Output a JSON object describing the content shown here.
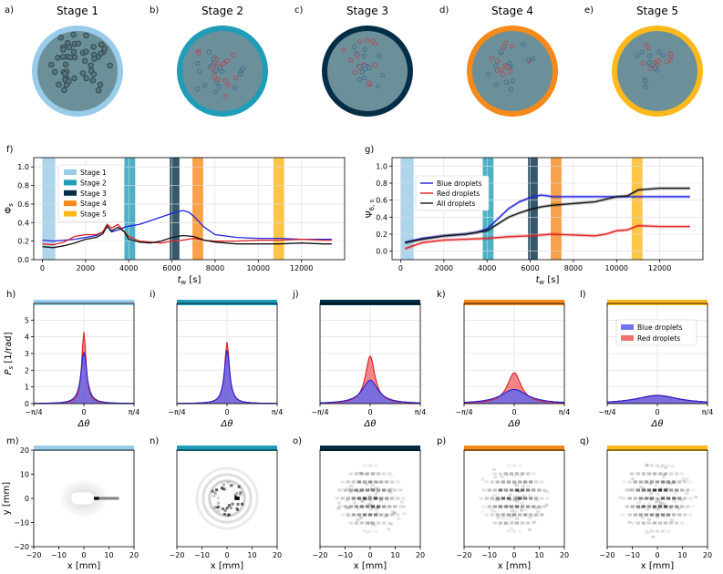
{
  "stages": [
    {
      "panel": "a)",
      "label": "Stage 1",
      "color": "#99CCE8",
      "n": 50
    },
    {
      "panel": "b)",
      "label": "Stage 2",
      "color": "#1F9DB8",
      "n": 38
    },
    {
      "panel": "c)",
      "label": "Stage 3",
      "color": "#032E46",
      "n": 30
    },
    {
      "panel": "d)",
      "label": "Stage 4",
      "color": "#F5891A",
      "n": 28
    },
    {
      "panel": "e)",
      "label": "Stage 5",
      "color": "#FDB81C",
      "n": 26
    }
  ],
  "colors": {
    "blue": "#2020E0",
    "red": "#E02020",
    "black": "#111111",
    "dish": "#6B9099",
    "dish_dark": "#5E7E86"
  },
  "chart_data": [
    {
      "panel": "f)",
      "type": "line",
      "ylabel": "Φs",
      "xlabel": "tw [s]",
      "xlim": [
        -400,
        14000
      ],
      "ylim": [
        0,
        1.1
      ],
      "xticks": [
        0,
        2000,
        4000,
        6000,
        8000,
        10000,
        12000
      ],
      "yticks": [
        0.0,
        0.2,
        0.4,
        0.6,
        0.8,
        1.0
      ],
      "bands": [
        [
          0,
          600
        ],
        [
          3800,
          4300
        ],
        [
          5900,
          6350
        ],
        [
          6950,
          7450
        ],
        [
          10700,
          11200
        ]
      ],
      "legend": [
        "Stage 1",
        "Stage 2",
        "Stage 3",
        "Stage 4",
        "Stage 5"
      ],
      "series": [
        {
          "name": "blue",
          "color": "#2020E0",
          "x": [
            0,
            500,
            1000,
            1500,
            2000,
            2500,
            2800,
            3000,
            3200,
            3500,
            3800,
            4000,
            4500,
            5000,
            5500,
            6000,
            6500,
            6800,
            7000,
            7500,
            8000,
            9000,
            10000,
            11000,
            12000,
            13000,
            13400
          ],
          "y": [
            0.21,
            0.2,
            0.21,
            0.22,
            0.24,
            0.26,
            0.3,
            0.36,
            0.3,
            0.32,
            0.35,
            0.36,
            0.38,
            0.42,
            0.46,
            0.5,
            0.53,
            0.51,
            0.47,
            0.35,
            0.27,
            0.24,
            0.23,
            0.23,
            0.22,
            0.22,
            0.22
          ]
        },
        {
          "name": "red",
          "color": "#E02020",
          "x": [
            0,
            500,
            1000,
            1500,
            2000,
            2500,
            2800,
            3000,
            3200,
            3500,
            3800,
            4000,
            4500,
            5000,
            5500,
            6000,
            6500,
            7000,
            7500,
            8000,
            9000,
            10000,
            11000,
            12000,
            13000,
            13400
          ],
          "y": [
            0.17,
            0.16,
            0.19,
            0.25,
            0.27,
            0.27,
            0.3,
            0.38,
            0.34,
            0.38,
            0.3,
            0.25,
            0.2,
            0.19,
            0.18,
            0.2,
            0.21,
            0.23,
            0.21,
            0.2,
            0.2,
            0.21,
            0.21,
            0.22,
            0.21,
            0.21
          ]
        },
        {
          "name": "black",
          "color": "#111111",
          "x": [
            0,
            500,
            1000,
            1500,
            2000,
            2500,
            2800,
            3000,
            3200,
            3500,
            3800,
            4000,
            4500,
            5000,
            5500,
            6000,
            6500,
            7000,
            7500,
            8000,
            9000,
            10000,
            11000,
            12000,
            13000,
            13400
          ],
          "y": [
            0.14,
            0.13,
            0.15,
            0.18,
            0.22,
            0.24,
            0.28,
            0.36,
            0.31,
            0.35,
            0.3,
            0.22,
            0.19,
            0.18,
            0.2,
            0.24,
            0.26,
            0.25,
            0.21,
            0.19,
            0.17,
            0.17,
            0.17,
            0.18,
            0.17,
            0.17
          ]
        }
      ]
    },
    {
      "panel": "g)",
      "type": "line",
      "ylabel": "Ψ6, s",
      "xlabel": "tw [s]",
      "xlim": [
        -400,
        14000
      ],
      "ylim": [
        -0.1,
        1.1
      ],
      "xticks": [
        0,
        2000,
        4000,
        6000,
        8000,
        10000,
        12000
      ],
      "yticks": [
        0.0,
        0.2,
        0.4,
        0.6,
        0.8,
        1.0
      ],
      "bands": [
        [
          0,
          600
        ],
        [
          3800,
          4300
        ],
        [
          5900,
          6350
        ],
        [
          6950,
          7450
        ],
        [
          10700,
          11200
        ]
      ],
      "legend": [
        "Blue droplets",
        "Red droplets",
        "All droplets"
      ],
      "series": [
        {
          "name": "blue",
          "color": "#2020E0",
          "x": [
            200,
            1000,
            2000,
            3000,
            3500,
            4000,
            4500,
            5000,
            5500,
            6000,
            6500,
            6800,
            7000,
            8000,
            9000,
            10000,
            11000,
            12000,
            13400
          ],
          "y": [
            0.1,
            0.15,
            0.18,
            0.2,
            0.22,
            0.26,
            0.38,
            0.5,
            0.58,
            0.63,
            0.66,
            0.65,
            0.64,
            0.64,
            0.64,
            0.64,
            0.64,
            0.64,
            0.64
          ]
        },
        {
          "name": "red",
          "color": "#E02020",
          "x": [
            200,
            1000,
            2000,
            3000,
            4000,
            5000,
            6000,
            7000,
            8000,
            9000,
            9500,
            10000,
            10500,
            11000,
            12000,
            13400
          ],
          "y": [
            0.03,
            0.1,
            0.13,
            0.14,
            0.15,
            0.17,
            0.18,
            0.2,
            0.19,
            0.18,
            0.2,
            0.24,
            0.25,
            0.3,
            0.29,
            0.29
          ]
        },
        {
          "name": "black",
          "color": "#111111",
          "x": [
            200,
            1000,
            2000,
            3000,
            4000,
            4500,
            5000,
            5500,
            6000,
            6500,
            7000,
            8000,
            9000,
            10000,
            10500,
            11000,
            12000,
            13400
          ],
          "y": [
            0.1,
            0.14,
            0.18,
            0.2,
            0.24,
            0.32,
            0.4,
            0.45,
            0.49,
            0.52,
            0.54,
            0.56,
            0.58,
            0.64,
            0.65,
            0.72,
            0.74,
            0.74
          ]
        }
      ]
    },
    {
      "type": "area",
      "xlabel": "Δθ",
      "ylabel": "Ps [1/rad]",
      "ylim": [
        0,
        6
      ],
      "yticks": [
        0,
        1,
        2,
        3,
        4,
        5
      ],
      "xtick_labels": [
        "−π/4",
        "0",
        "π/4"
      ],
      "legend": [
        "Blue droplets",
        "Red droplets"
      ],
      "panels": [
        {
          "panel": "h)",
          "blue_peak": 3.1,
          "blue_width": 0.055,
          "red_peak": 4.3,
          "red_width": 0.04
        },
        {
          "panel": "i)",
          "blue_peak": 3.2,
          "blue_width": 0.05,
          "red_peak": 3.7,
          "red_width": 0.045
        },
        {
          "panel": "j)",
          "blue_peak": 1.4,
          "blue_width": 0.15,
          "red_peak": 2.85,
          "red_width": 0.09
        },
        {
          "panel": "k)",
          "blue_peak": 0.85,
          "blue_width": 0.25,
          "red_peak": 1.85,
          "red_width": 0.13
        },
        {
          "panel": "l)",
          "blue_peak": 0.48,
          "blue_width": 0.4,
          "red_peak": 0.5,
          "red_width": 0.4
        }
      ]
    },
    {
      "type": "heatmap",
      "xlabel": "x [mm]",
      "ylabel": "y [mm]",
      "xlim": [
        -20,
        20
      ],
      "ylim": [
        -20,
        20
      ],
      "ticks": [
        -20,
        -10,
        0,
        10,
        20
      ],
      "panels": [
        {
          "panel": "m)"
        },
        {
          "panel": "n)"
        },
        {
          "panel": "o)"
        },
        {
          "panel": "p)"
        },
        {
          "panel": "q)"
        }
      ]
    }
  ]
}
